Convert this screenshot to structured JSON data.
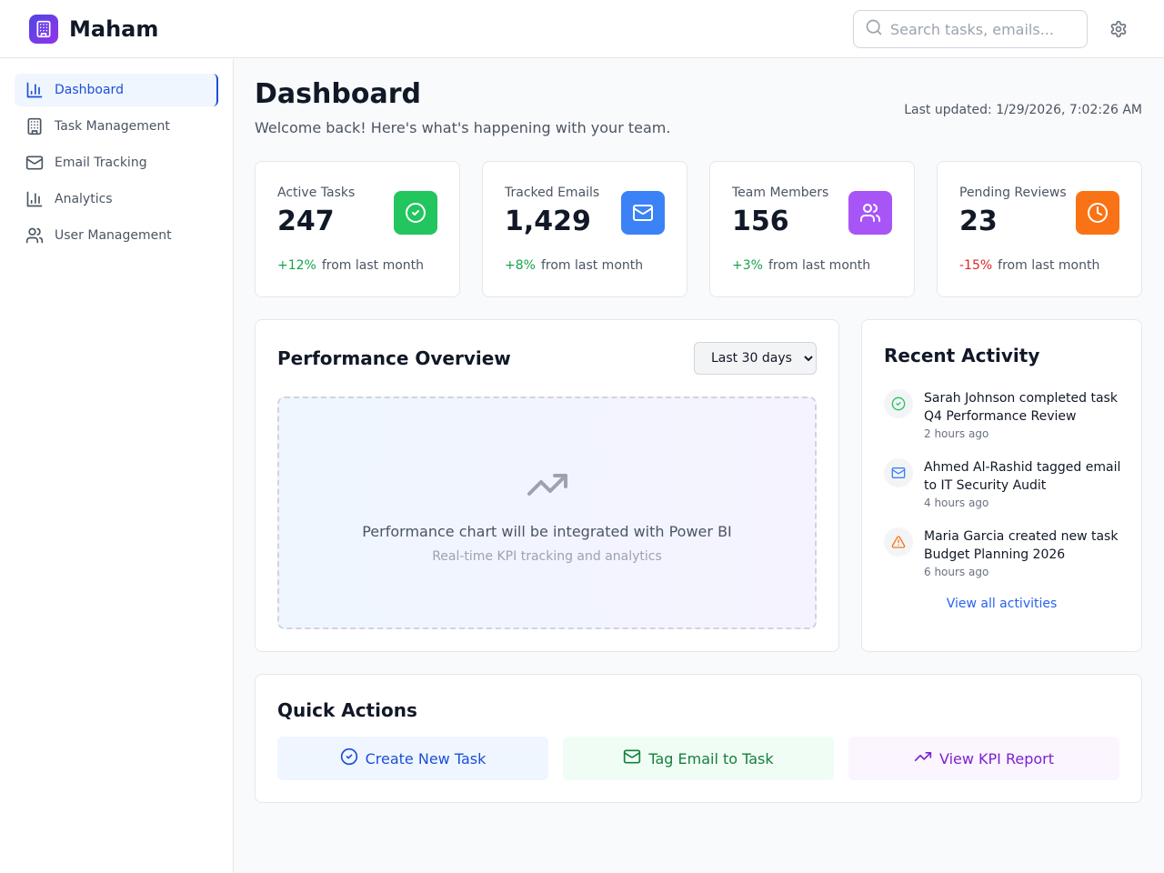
{
  "header": {
    "app_name": "Maham",
    "search_placeholder": "Search tasks, emails..."
  },
  "sidebar": {
    "items": [
      {
        "label": "Dashboard",
        "icon": "bar-chart-icon",
        "active": true
      },
      {
        "label": "Task Management",
        "icon": "building-icon"
      },
      {
        "label": "Email Tracking",
        "icon": "mail-icon"
      },
      {
        "label": "Analytics",
        "icon": "bar-chart-icon"
      },
      {
        "label": "User Management",
        "icon": "users-icon"
      }
    ]
  },
  "page": {
    "title": "Dashboard",
    "subtitle": "Welcome back! Here's what's happening with your team.",
    "last_updated": "Last updated: 1/29/2026, 7:02:26 AM"
  },
  "stats": [
    {
      "label": "Active Tasks",
      "value": "247",
      "change": "+12%",
      "change_suffix": "from last month",
      "icon": "check-circle-icon",
      "color": "#22c55e"
    },
    {
      "label": "Tracked Emails",
      "value": "1,429",
      "change": "+8%",
      "change_suffix": "from last month",
      "icon": "mail-icon",
      "color": "#3b82f6"
    },
    {
      "label": "Team Members",
      "value": "156",
      "change": "+3%",
      "change_suffix": "from last month",
      "icon": "users-icon",
      "color": "#a855f7"
    },
    {
      "label": "Pending Reviews",
      "value": "23",
      "change": "-15%",
      "change_suffix": "from last month",
      "icon": "clock-icon",
      "color": "#f97316"
    }
  ],
  "performance": {
    "title": "Performance Overview",
    "range_selected": "Last 30 days",
    "placeholder_main": "Performance chart will be integrated with Power BI",
    "placeholder_sub": "Real-time KPI tracking and analytics"
  },
  "activity": {
    "title": "Recent Activity",
    "items": [
      {
        "text": "Sarah Johnson completed task Q4 Performance Review",
        "time": "2 hours ago",
        "icon": "check-circle-icon",
        "color": "#22c55e"
      },
      {
        "text": "Ahmed Al-Rashid tagged email to IT Security Audit",
        "time": "4 hours ago",
        "icon": "mail-icon",
        "color": "#3b82f6"
      },
      {
        "text": "Maria Garcia created new task Budget Planning 2026",
        "time": "6 hours ago",
        "icon": "alert-triangle-icon",
        "color": "#f97316"
      }
    ],
    "view_all": "View all activities"
  },
  "quick_actions": {
    "title": "Quick Actions",
    "buttons": [
      {
        "label": "Create New Task",
        "icon": "check-circle-icon",
        "color": "#1d4ed8",
        "bg": "#eff6ff"
      },
      {
        "label": "Tag Email to Task",
        "icon": "mail-icon",
        "color": "#15803d",
        "bg": "#f0fdf4"
      },
      {
        "label": "View KPI Report",
        "icon": "trending-up-icon",
        "color": "#7e22ce",
        "bg": "#faf5ff"
      }
    ]
  }
}
